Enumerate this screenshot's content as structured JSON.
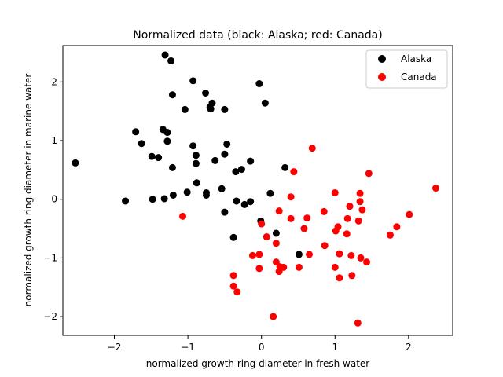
{
  "chart_data": {
    "type": "scatter",
    "title": "Normalized data (black: Alaska; red: Canada)",
    "xlabel": "normalized growth ring diameter in fresh water",
    "ylabel": "normalized growth ring diameter in marine water",
    "xlim": [
      -2.7,
      2.6
    ],
    "ylim": [
      -2.32,
      2.62
    ],
    "xticks": [
      -2,
      -1,
      0,
      1,
      2
    ],
    "yticks": [
      -2,
      -1,
      0,
      1,
      2
    ],
    "grid": false,
    "legend_position": "top-right",
    "series": [
      {
        "name": "Alaska",
        "color": "#000000",
        "points": [
          [
            -2.53,
            0.62
          ],
          [
            -1.85,
            -0.03
          ],
          [
            -1.71,
            1.15
          ],
          [
            -1.63,
            0.95
          ],
          [
            -1.49,
            0.73
          ],
          [
            -1.48,
            0.0
          ],
          [
            -1.4,
            0.71
          ],
          [
            -1.34,
            1.19
          ],
          [
            -1.31,
            2.46
          ],
          [
            -1.32,
            0.01
          ],
          [
            -1.28,
            1.14
          ],
          [
            -1.28,
            0.99
          ],
          [
            -1.23,
            2.36
          ],
          [
            -1.21,
            1.78
          ],
          [
            -1.21,
            0.54
          ],
          [
            -1.2,
            0.07
          ],
          [
            -1.04,
            1.53
          ],
          [
            -1.01,
            0.12
          ],
          [
            -0.93,
            2.02
          ],
          [
            -0.93,
            0.91
          ],
          [
            -0.89,
            0.75
          ],
          [
            -0.89,
            0.61
          ],
          [
            -0.88,
            0.28
          ],
          [
            -0.76,
            1.81
          ],
          [
            -0.75,
            0.11
          ],
          [
            -0.75,
            0.07
          ],
          [
            -0.7,
            1.57
          ],
          [
            -0.69,
            1.54
          ],
          [
            -0.67,
            1.64
          ],
          [
            -0.63,
            0.66
          ],
          [
            -0.54,
            0.18
          ],
          [
            -0.5,
            1.53
          ],
          [
            -0.5,
            -0.22
          ],
          [
            -0.5,
            0.77
          ],
          [
            -0.47,
            0.94
          ],
          [
            -0.38,
            -0.65
          ],
          [
            -0.35,
            0.47
          ],
          [
            -0.34,
            -0.03
          ],
          [
            -0.27,
            0.51
          ],
          [
            -0.23,
            -0.09
          ],
          [
            -0.15,
            0.65
          ],
          [
            -0.15,
            -0.04
          ],
          [
            -0.03,
            1.97
          ],
          [
            -0.01,
            -0.37
          ],
          [
            0.05,
            1.64
          ],
          [
            0.12,
            0.1
          ],
          [
            0.2,
            -0.58
          ],
          [
            0.32,
            0.54
          ],
          [
            0.51,
            -0.94
          ]
        ]
      },
      {
        "name": "Canada",
        "color": "#ff0000",
        "points": [
          [
            -1.07,
            -0.29
          ],
          [
            -0.38,
            -1.3
          ],
          [
            -0.38,
            -1.48
          ],
          [
            -0.33,
            -1.58
          ],
          [
            -0.12,
            -0.96
          ],
          [
            -0.03,
            -0.94
          ],
          [
            -0.03,
            -1.18
          ],
          [
            0.0,
            -0.42
          ],
          [
            0.07,
            -0.64
          ],
          [
            0.16,
            -2.0
          ],
          [
            0.2,
            -0.75
          ],
          [
            0.2,
            -1.07
          ],
          [
            0.24,
            -0.2
          ],
          [
            0.24,
            -1.23
          ],
          [
            0.25,
            -1.15
          ],
          [
            0.3,
            -1.16
          ],
          [
            0.4,
            0.04
          ],
          [
            0.4,
            -0.33
          ],
          [
            0.44,
            0.47
          ],
          [
            0.51,
            -1.16
          ],
          [
            0.58,
            -0.5
          ],
          [
            0.62,
            -0.32
          ],
          [
            0.65,
            -0.94
          ],
          [
            0.69,
            0.87
          ],
          [
            0.85,
            -0.21
          ],
          [
            0.86,
            -0.79
          ],
          [
            1.0,
            0.11
          ],
          [
            1.0,
            -1.16
          ],
          [
            1.01,
            -0.54
          ],
          [
            1.04,
            -0.47
          ],
          [
            1.06,
            -0.93
          ],
          [
            1.06,
            -1.34
          ],
          [
            1.16,
            -0.59
          ],
          [
            1.17,
            -0.33
          ],
          [
            1.2,
            -0.12
          ],
          [
            1.22,
            -0.96
          ],
          [
            1.23,
            -1.3
          ],
          [
            1.31,
            -2.11
          ],
          [
            1.32,
            -0.37
          ],
          [
            1.34,
            0.1
          ],
          [
            1.34,
            -0.04
          ],
          [
            1.35,
            -1.0
          ],
          [
            1.37,
            -0.18
          ],
          [
            1.43,
            -1.07
          ],
          [
            1.46,
            0.44
          ],
          [
            1.75,
            -0.61
          ],
          [
            1.84,
            -0.47
          ],
          [
            2.01,
            -0.26
          ],
          [
            2.37,
            0.19
          ]
        ]
      }
    ]
  }
}
